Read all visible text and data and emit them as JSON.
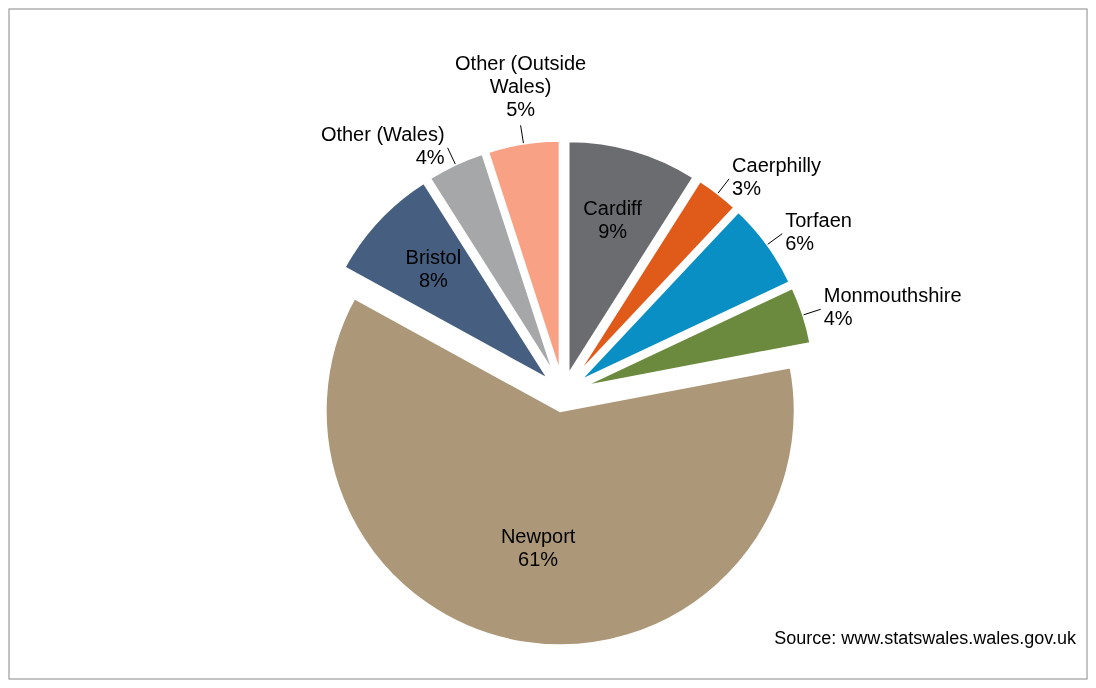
{
  "chart_data": {
    "type": "pie",
    "categories": [
      "Cardiff",
      "Caerphilly",
      "Torfaen",
      "Monmouthshire",
      "Newport",
      "Bristol",
      "Other (Wales)",
      "Other (Outside Wales)"
    ],
    "values": [
      9,
      3,
      6,
      4,
      61,
      8,
      4,
      5
    ],
    "colors": [
      "#6b6c70",
      "#e05a1a",
      "#0a8fc4",
      "#6b8a3e",
      "#ac9878",
      "#465f80",
      "#a6a7a9",
      "#f9a185"
    ],
    "value_labels": [
      "9%",
      "3%",
      "6%",
      "4%",
      "61%",
      "8%",
      "4%",
      "5%"
    ],
    "annotations": [
      "Source: www.statswales.wales.gov.uk"
    ]
  }
}
